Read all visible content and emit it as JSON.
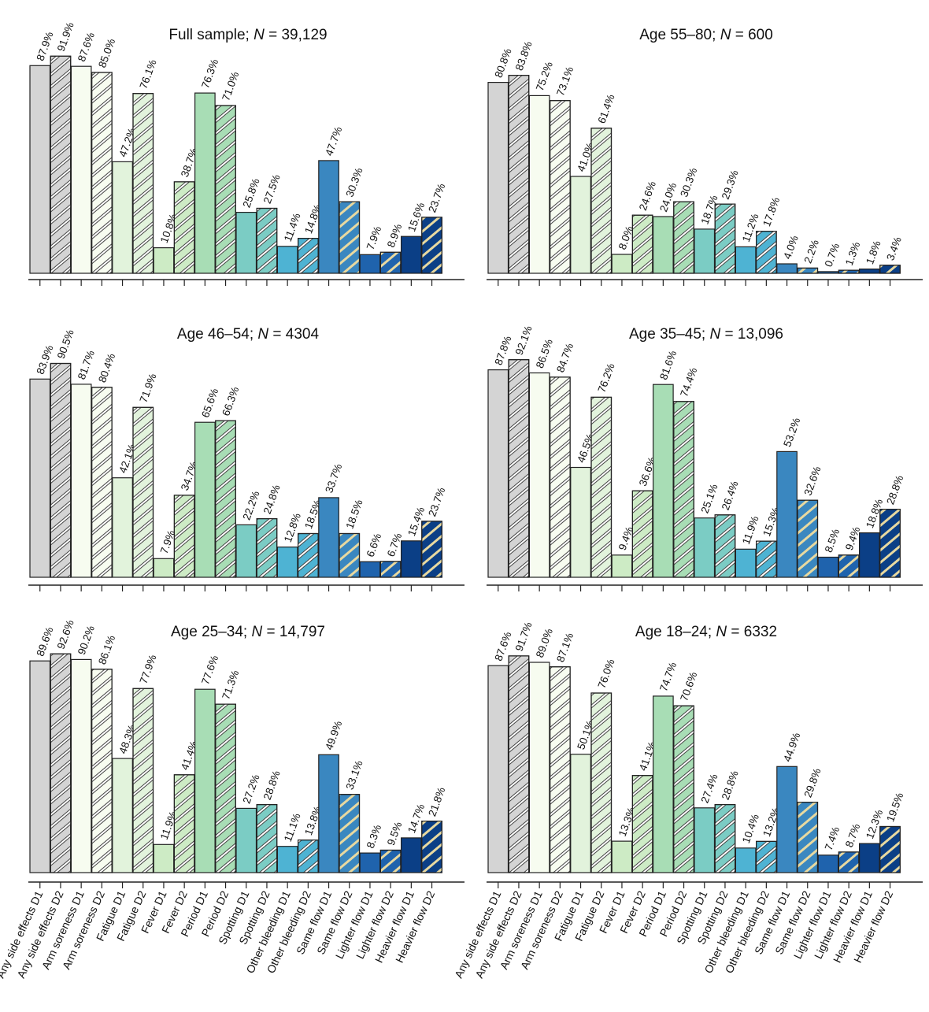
{
  "chart_data": {
    "type": "bar",
    "ylabel": "",
    "xlabel": "",
    "ylim": [
      0,
      100
    ],
    "categories": [
      "Any side effects D1",
      "Any side effects D2",
      "Arm soreness D1",
      "Arm soreness D2",
      "Fatigue D1",
      "Fatigue D2",
      "Fever D1",
      "Fever D2",
      "Period D1",
      "Period D2",
      "Spotting D1",
      "Spotting D2",
      "Other bleeding D1",
      "Other bleeding D2",
      "Same flow D1",
      "Same flow D2",
      "Lighter flow D1",
      "Lighter flow D2",
      "Heavier flow D1",
      "Heavier flow D2"
    ],
    "group_colors": [
      "#d4d4d4",
      "#f7fcf0",
      "#e2f3dc",
      "#cdebc5",
      "#a8ddb5",
      "#7bccc4",
      "#4eb3d3",
      "#3a87c0",
      "#1f63ad",
      "#0b3f86"
    ],
    "hatch_colors": {
      "dark": "#444444",
      "light": "#e8d9a0"
    },
    "panels": [
      {
        "title_prefix": "Full sample; ",
        "n_symbol": "N",
        "n_value": " = 39,129",
        "values": [
          87.9,
          91.9,
          87.6,
          85.0,
          47.2,
          76.1,
          10.8,
          38.7,
          76.3,
          71.0,
          25.8,
          27.5,
          11.4,
          14.8,
          47.7,
          30.3,
          7.9,
          8.9,
          15.6,
          23.7
        ]
      },
      {
        "title_prefix": "Age 55–80; ",
        "n_symbol": "N",
        "n_value": " = 600",
        "values": [
          80.8,
          83.8,
          75.2,
          73.1,
          41.0,
          61.4,
          8.0,
          24.6,
          24.0,
          30.3,
          18.7,
          29.3,
          11.2,
          17.8,
          4.0,
          2.2,
          0.7,
          1.3,
          1.8,
          3.4
        ]
      },
      {
        "title_prefix": "Age 46–54; ",
        "n_symbol": "N",
        "n_value": " = 4304",
        "values": [
          83.9,
          90.5,
          81.7,
          80.4,
          42.1,
          71.9,
          7.9,
          34.7,
          65.6,
          66.3,
          22.2,
          24.8,
          12.8,
          18.5,
          33.7,
          18.5,
          6.6,
          6.7,
          15.4,
          23.7
        ]
      },
      {
        "title_prefix": "Age 35–45; ",
        "n_symbol": "N",
        "n_value": " = 13,096",
        "values": [
          87.8,
          92.1,
          86.5,
          84.7,
          46.5,
          76.2,
          9.4,
          36.6,
          81.6,
          74.4,
          25.1,
          26.4,
          11.9,
          15.3,
          53.2,
          32.6,
          8.5,
          9.4,
          18.8,
          28.8
        ]
      },
      {
        "title_prefix": "Age 25–34; ",
        "n_symbol": "N",
        "n_value": " = 14,797",
        "values": [
          89.6,
          92.6,
          90.2,
          86.1,
          48.3,
          77.9,
          11.9,
          41.4,
          77.6,
          71.3,
          27.2,
          28.8,
          11.1,
          13.8,
          49.9,
          33.1,
          8.3,
          9.5,
          14.7,
          21.8
        ]
      },
      {
        "title_prefix": "Age 18–24; ",
        "n_symbol": "N",
        "n_value": " = 6332",
        "values": [
          87.6,
          91.7,
          89.0,
          87.1,
          50.1,
          76.0,
          13.3,
          41.1,
          74.7,
          70.6,
          27.4,
          28.8,
          10.4,
          13.2,
          44.9,
          29.8,
          7.4,
          8.7,
          12.3,
          19.5
        ]
      }
    ]
  }
}
